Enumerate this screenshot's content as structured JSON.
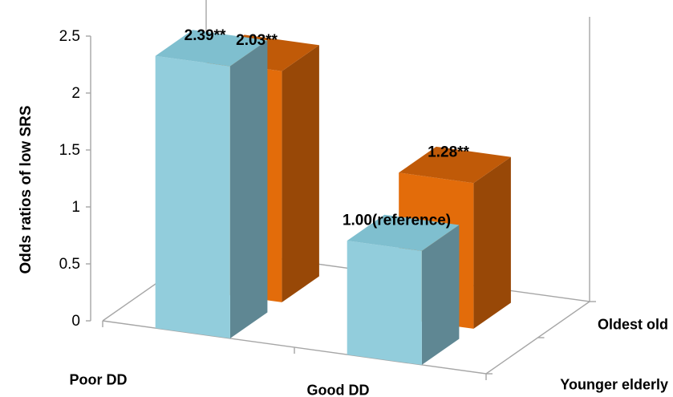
{
  "chart_data": {
    "type": "bar",
    "projection": "3d",
    "title": "",
    "ylabel": "Odds ratios of low SRS",
    "ylim": [
      0,
      2.5
    ],
    "yticks": [
      0,
      0.5,
      1,
      1.5,
      2,
      2.5
    ],
    "ytick_labels": [
      "0",
      "0.5",
      "1",
      "1.5",
      "2",
      "2.5"
    ],
    "categories": [
      "Poor DD",
      "Good DD"
    ],
    "series": [
      {
        "name": "Younger elderly",
        "color_front": "#92cddc",
        "color_top": "#7fbfcf",
        "color_side": "#5f8793",
        "values": [
          2.39,
          1.0
        ],
        "labels": [
          "2.39**",
          "1.00(reference)"
        ]
      },
      {
        "name": "Oldest old",
        "color_front": "#e36c0a",
        "color_top": "#c05a08",
        "color_side": "#984807",
        "values": [
          2.03,
          1.28
        ],
        "labels": [
          "2.03**",
          "1.28**"
        ]
      }
    ]
  }
}
